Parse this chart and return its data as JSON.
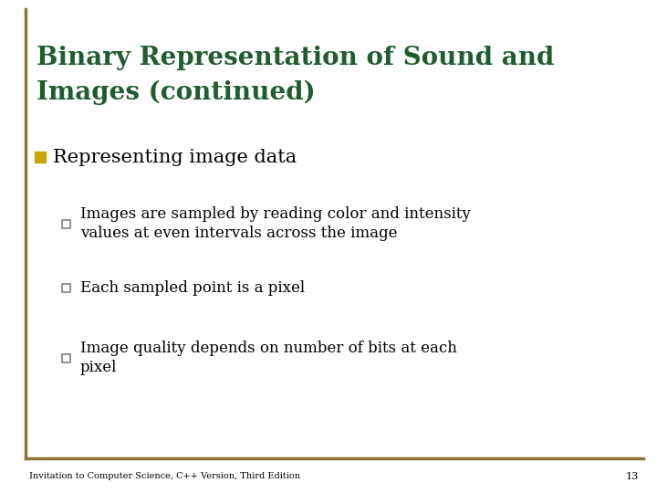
{
  "title_line1": "Binary Representation of Sound and",
  "title_line2": "Images (continued)",
  "title_color": "#1F5C2E",
  "background_color": "#FFFFFF",
  "border_left_color": "#8B7536",
  "border_bottom_color": "#8B7536",
  "bullet1_marker_color": "#C8A800",
  "bullet1_text": "Representing image data",
  "bullet1_text_color": "#000000",
  "sub_bullet_marker_color": "#808080",
  "sub_bullets": [
    "Images are sampled by reading color and intensity\nvalues at even intervals across the image",
    "Each sampled point is a pixel",
    "Image quality depends on number of bits at each\npixel"
  ],
  "sub_bullet_text_color": "#000000",
  "footer_text": "Invitation to Computer Science, C++ Version, Third Edition",
  "footer_page": "13",
  "footer_color": "#000000",
  "title_fontsize": 20,
  "bullet1_fontsize": 15,
  "sub_bullet_fontsize": 12,
  "footer_fontsize": 7
}
